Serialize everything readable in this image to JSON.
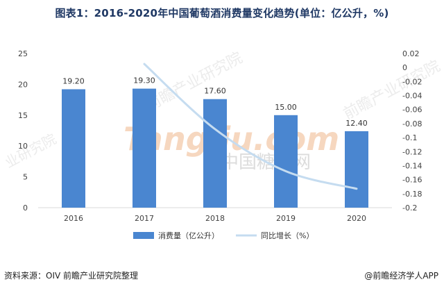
{
  "title": "图表1：2016-2020年中国葡萄酒消费量变化趋势(单位：亿公升，%)",
  "footer": {
    "source": "资料来源：OIV 前瞻产业研究院整理",
    "brand": "@前瞻经济学人APP"
  },
  "watermarks": [
    "前瞻产业研究院",
    "Tangjiu.com",
    "中国糖酒网",
    "业研究院"
  ],
  "colors": {
    "bar": "#4a86d0",
    "line": "#c5dcf0",
    "axis": "#d9d9d9",
    "text": "#404040"
  },
  "chart_data": {
    "type": "bar",
    "categories": [
      "2016",
      "2017",
      "2018",
      "2019",
      "2020"
    ],
    "series": [
      {
        "name": "消费量（亿公升）",
        "type": "bar",
        "axis": "left",
        "values": [
          19.2,
          19.3,
          17.6,
          15.0,
          12.4
        ],
        "labels": [
          "19.20",
          "19.30",
          "17.60",
          "15.00",
          "12.40"
        ]
      },
      {
        "name": "同比增长（%）",
        "type": "line",
        "axis": "right",
        "values": [
          null,
          0.005,
          -0.088,
          -0.148,
          -0.173
        ]
      }
    ],
    "left_axis": {
      "min": 0,
      "max": 25,
      "ticks": [
        "0",
        "5",
        "10",
        "15",
        "20",
        "25"
      ]
    },
    "right_axis": {
      "min": -0.2,
      "max": 0.02,
      "ticks": [
        "0.02",
        "0",
        "-0.02",
        "-0.04",
        "-0.06",
        "-0.08",
        "-0.1",
        "-0.12",
        "-0.14",
        "-0.16",
        "-0.18",
        "-0.2"
      ]
    },
    "legend": "bottom-center",
    "grid": false
  }
}
